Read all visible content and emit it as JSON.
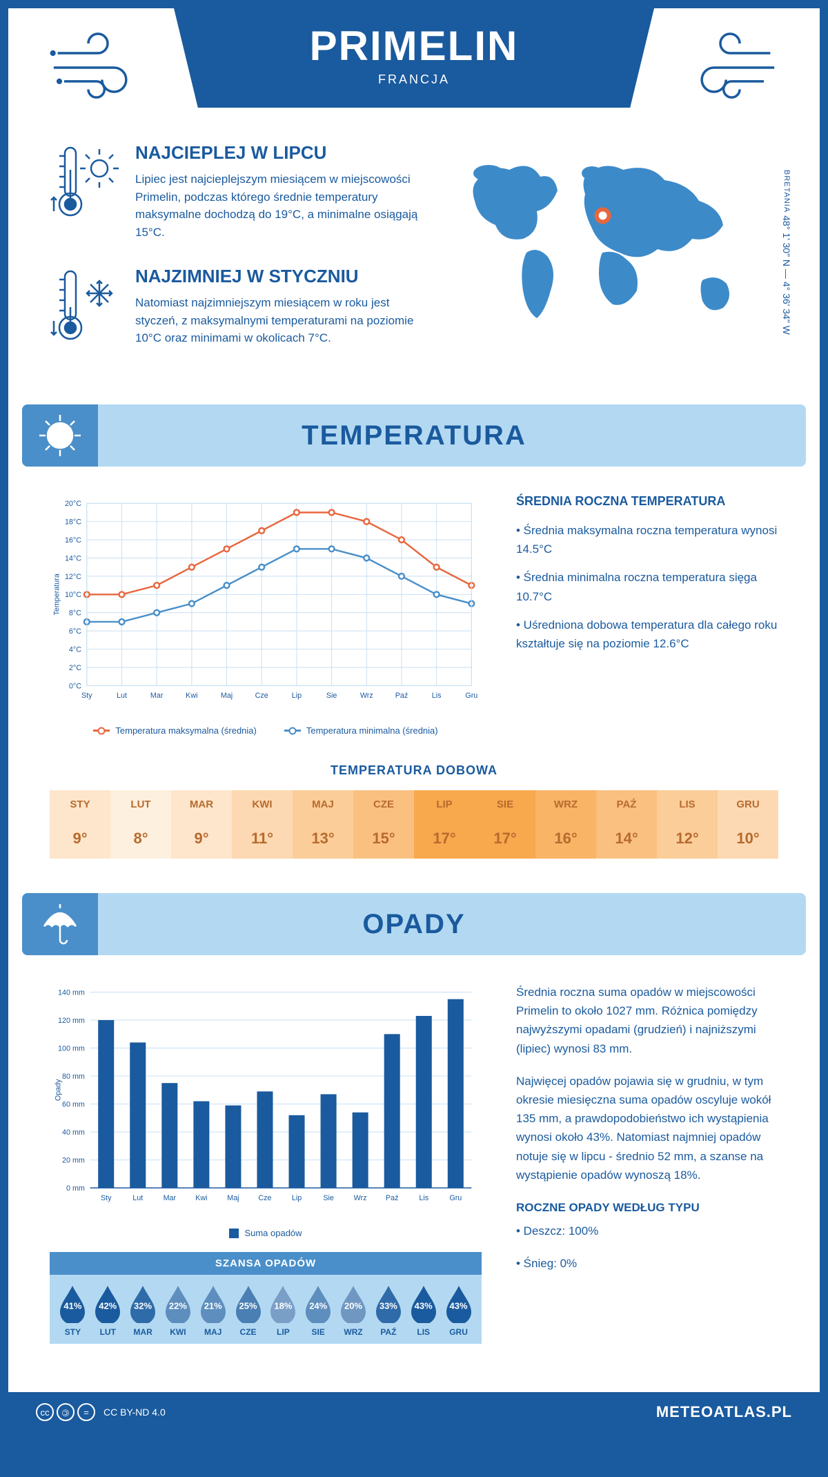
{
  "header": {
    "title": "PRIMELIN",
    "subtitle": "FRANCJA",
    "coords": "48° 1' 30\" N — 4° 36' 34\" W",
    "region": "BRETANIA"
  },
  "intro": {
    "hot": {
      "title": "NAJCIEPLEJ W LIPCU",
      "text": "Lipiec jest najcieplejszym miesiącem w miejscowości Primelin, podczas którego średnie temperatury maksymalne dochodzą do 19°C, a minimalne osiągają 15°C."
    },
    "cold": {
      "title": "NAJZIMNIEJ W STYCZNIU",
      "text": "Natomiast najzimniejszym miesiącem w roku jest styczeń, z maksymalnymi temperaturami na poziomie 10°C oraz minimami w okolicach 7°C."
    },
    "map": {
      "marker_x": 0.47,
      "marker_y": 0.38
    }
  },
  "temperature": {
    "section_title": "TEMPERATURA",
    "chart": {
      "months": [
        "Sty",
        "Lut",
        "Mar",
        "Kwi",
        "Maj",
        "Cze",
        "Lip",
        "Sie",
        "Wrz",
        "Paź",
        "Lis",
        "Gru"
      ],
      "max_values": [
        10,
        10,
        11,
        13,
        15,
        17,
        19,
        19,
        18,
        16,
        13,
        11
      ],
      "min_values": [
        7,
        7,
        8,
        9,
        11,
        13,
        15,
        15,
        14,
        12,
        10,
        9
      ],
      "ylim": [
        0,
        20
      ],
      "ytick": 2,
      "ylabel": "Temperatura",
      "max_color": "#e8663c",
      "min_color": "#4a8fc9",
      "grid_color": "#c7dff2",
      "legend_max": "Temperatura maksymalna (średnia)",
      "legend_min": "Temperatura minimalna (średnia)"
    },
    "info": {
      "title": "ŚREDNIA ROCZNA TEMPERATURA",
      "bullets": [
        "Średnia maksymalna roczna temperatura wynosi 14.5°C",
        "Średnia minimalna roczna temperatura sięga 10.7°C",
        "Uśredniona dobowa temperatura dla całego roku kształtuje się na poziomie 12.6°C"
      ]
    },
    "daily": {
      "title": "TEMPERATURA DOBOWA",
      "months": [
        "STY",
        "LUT",
        "MAR",
        "KWI",
        "MAJ",
        "CZE",
        "LIP",
        "SIE",
        "WRZ",
        "PAŹ",
        "LIS",
        "GRU"
      ],
      "values": [
        "9°",
        "8°",
        "9°",
        "11°",
        "13°",
        "15°",
        "17°",
        "17°",
        "16°",
        "14°",
        "12°",
        "10°"
      ],
      "colors": [
        "#fde6cc",
        "#fef0de",
        "#fde6cc",
        "#fcd9b2",
        "#fbcd99",
        "#fac080",
        "#f8a84d",
        "#f8a84d",
        "#f9b466",
        "#fac080",
        "#fbcd99",
        "#fcd9b2"
      ],
      "text_color": "#b86a2e"
    }
  },
  "precip": {
    "section_title": "OPADY",
    "chart": {
      "months": [
        "Sty",
        "Lut",
        "Mar",
        "Kwi",
        "Maj",
        "Cze",
        "Lip",
        "Sie",
        "Wrz",
        "Paź",
        "Lis",
        "Gru"
      ],
      "values": [
        120,
        104,
        75,
        62,
        59,
        69,
        52,
        67,
        54,
        110,
        123,
        135
      ],
      "ylim": [
        0,
        140
      ],
      "ytick": 20,
      "ylabel": "Opady",
      "bar_color": "#1a5a9e",
      "grid_color": "#c7dff2",
      "bar_width": 0.5,
      "legend": "Suma opadów"
    },
    "info": {
      "p1": "Średnia roczna suma opadów w miejscowości Primelin to około 1027 mm. Różnica pomiędzy najwyższymi opadami (grudzień) i najniższymi (lipiec) wynosi 83 mm.",
      "p2": "Najwięcej opadów pojawia się w grudniu, w tym okresie miesięczna suma opadów oscyluje wokół 135 mm, a prawdopodobieństwo ich wystąpienia wynosi około 43%. Natomiast najmniej opadów notuje się w lipcu - średnio 52 mm, a szanse na wystąpienie opadów wynoszą 18%.",
      "type_title": "ROCZNE OPADY WEDŁUG TYPU",
      "types": [
        "Deszcz: 100%",
        "Śnieg: 0%"
      ]
    },
    "chance": {
      "title": "SZANSA OPADÓW",
      "months": [
        "STY",
        "LUT",
        "MAR",
        "KWI",
        "MAJ",
        "CZE",
        "LIP",
        "SIE",
        "WRZ",
        "PAŹ",
        "LIS",
        "GRU"
      ],
      "values": [
        "41%",
        "42%",
        "32%",
        "22%",
        "21%",
        "25%",
        "18%",
        "24%",
        "20%",
        "33%",
        "43%",
        "43%"
      ],
      "drop_colors": [
        "#1a5a9e",
        "#1a5a9e",
        "#2f6ba8",
        "#5e8ebd",
        "#5e8ebd",
        "#4a7fb3",
        "#7a9fc7",
        "#5e8ebd",
        "#6f97c2",
        "#2f6ba8",
        "#1a5a9e",
        "#1a5a9e"
      ]
    }
  },
  "footer": {
    "license": "CC BY-ND 4.0",
    "site": "METEOATLAS.PL"
  }
}
